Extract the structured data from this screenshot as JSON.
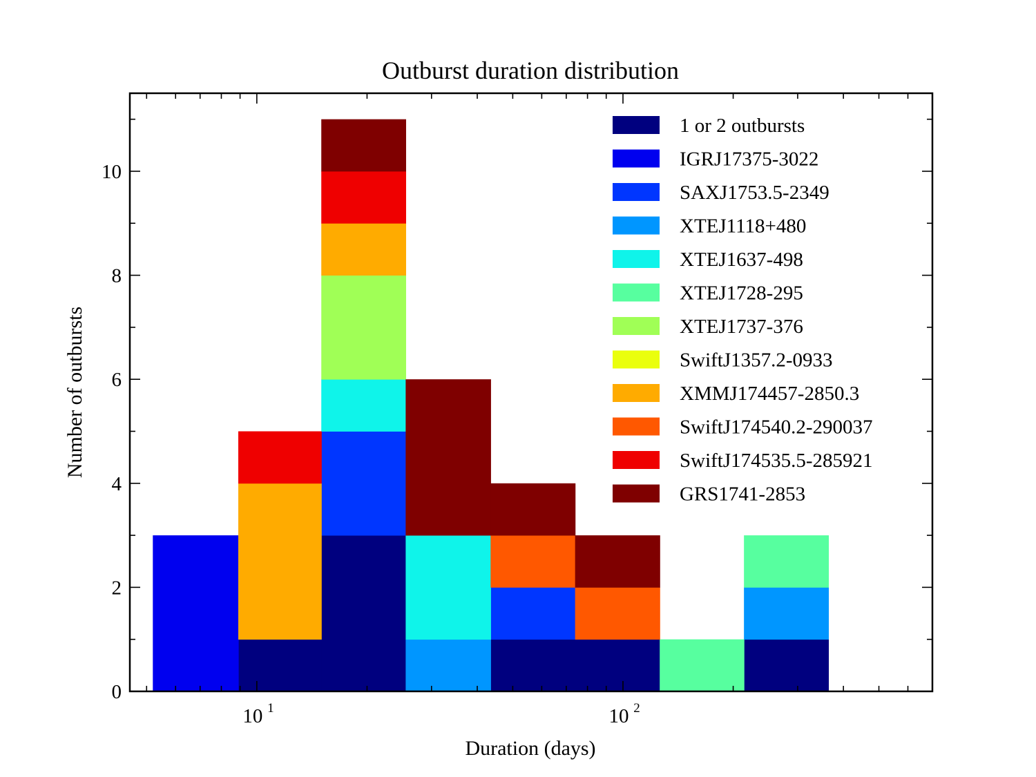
{
  "chart_data": {
    "type": "bar",
    "stacked": true,
    "title": "Outburst duration distribution",
    "xlabel": "Duration (days)",
    "ylabel": "Number of outbursts",
    "x_scale": "log",
    "xlim": [
      4.5,
      700
    ],
    "ylim": [
      0,
      11.5
    ],
    "x_ticks": [
      {
        "value": 10,
        "base": "10",
        "exp": "1"
      },
      {
        "value": 100,
        "base": "10",
        "exp": "2"
      }
    ],
    "y_ticks": [
      0,
      2,
      4,
      6,
      8,
      10
    ],
    "bin_edges": [
      5.2,
      8.9,
      15.0,
      25.5,
      43.5,
      74,
      126,
      214,
      364
    ],
    "legend_position": "top-right",
    "grid": false,
    "series": [
      {
        "name": "1 or 2 outbursts",
        "color": "#00007f",
        "values": [
          0,
          1,
          3,
          0,
          1,
          1,
          0,
          1
        ]
      },
      {
        "name": "IGRJ17375-3022",
        "color": "#0000ef",
        "values": [
          3,
          0,
          0,
          0,
          0,
          0,
          0,
          0
        ]
      },
      {
        "name": "SAXJ1753.5-2349",
        "color": "#0036ff",
        "values": [
          0,
          0,
          2,
          0,
          1,
          0,
          0,
          0
        ]
      },
      {
        "name": "XTEJ1118+480",
        "color": "#0096ff",
        "values": [
          0,
          0,
          0,
          1,
          0,
          0,
          0,
          1
        ]
      },
      {
        "name": "XTEJ1637-498",
        "color": "#0ff4ea",
        "values": [
          0,
          0,
          1,
          2,
          0,
          0,
          0,
          0
        ]
      },
      {
        "name": "XTEJ1728-295",
        "color": "#57ff9f",
        "values": [
          0,
          0,
          0,
          0,
          0,
          0,
          1,
          1
        ]
      },
      {
        "name": "XTEJ1737-376",
        "color": "#a0ff56",
        "values": [
          0,
          0,
          2,
          0,
          0,
          0,
          0,
          0
        ]
      },
      {
        "name": "SwiftJ1357.2-0933",
        "color": "#eaff0d",
        "values": [
          0,
          0,
          0,
          0,
          0,
          0,
          0,
          0
        ]
      },
      {
        "name": "XMMJ174457-2850.3",
        "color": "#ffab00",
        "values": [
          0,
          3,
          1,
          0,
          0,
          0,
          0,
          0
        ]
      },
      {
        "name": "SwiftJ174540.2-290037",
        "color": "#ff5800",
        "values": [
          0,
          0,
          0,
          0,
          1,
          1,
          0,
          0
        ]
      },
      {
        "name": "SwiftJ174535.5-285921",
        "color": "#ef0000",
        "values": [
          0,
          1,
          1,
          0,
          0,
          0,
          0,
          0
        ]
      },
      {
        "name": "GRS1741-2853",
        "color": "#7f0000",
        "values": [
          0,
          0,
          1,
          3,
          1,
          1,
          0,
          0
        ]
      }
    ]
  }
}
